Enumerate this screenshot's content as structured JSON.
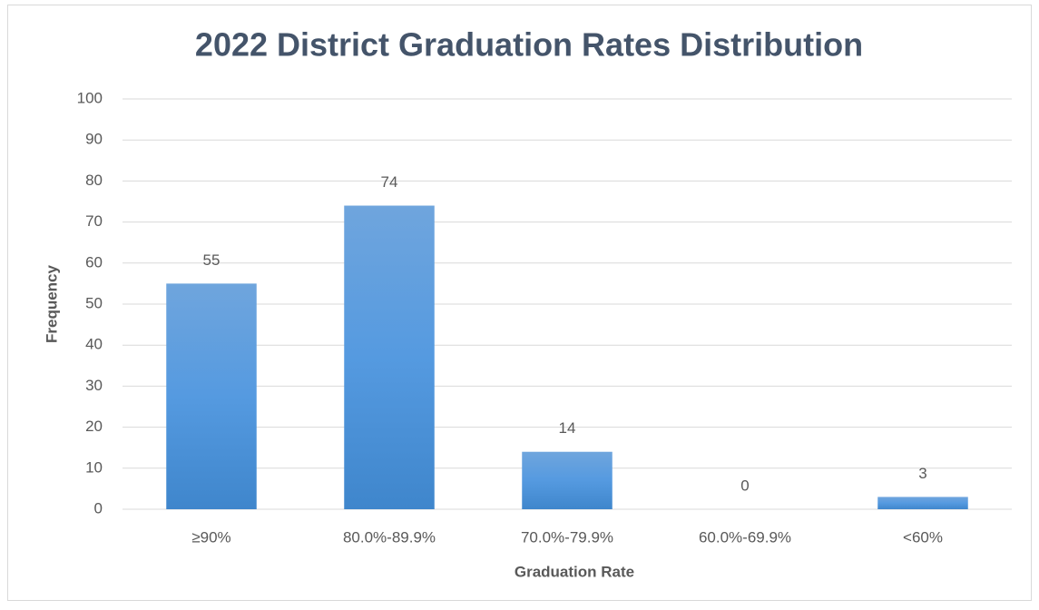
{
  "chart_data": {
    "type": "bar",
    "title": "2022 District Graduation Rates Distribution",
    "x_label": "Graduation Rate",
    "y_label": "Frequency",
    "categories": [
      "≥90%",
      "80.0%-89.9%",
      "70.0%-79.9%",
      "60.0%-69.9%",
      "<60%"
    ],
    "values": [
      55,
      74,
      14,
      0,
      3
    ],
    "color": "#5b9bd5",
    "ylim": [
      0,
      100
    ],
    "yticks": [
      0,
      10,
      20,
      30,
      40,
      50,
      60,
      70,
      80,
      90,
      100
    ],
    "grid": true
  }
}
